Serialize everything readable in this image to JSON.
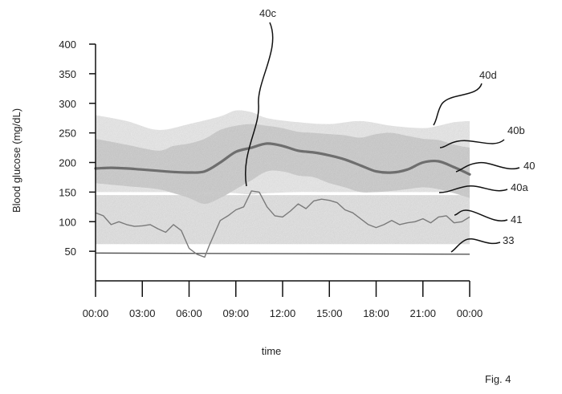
{
  "figure_label": "Fig. 4",
  "chart_data": {
    "type": "area",
    "xlabel": "time",
    "ylabel": "Blood glucose (mg/dL)",
    "x_tick_labels": [
      "00:00",
      "03:00",
      "06:00",
      "09:00",
      "12:00",
      "15:00",
      "18:00",
      "21:00",
      "00:00"
    ],
    "y_ticks": [
      50,
      100,
      150,
      200,
      250,
      300,
      350,
      400
    ],
    "xlim": [
      0,
      24
    ],
    "ylim": [
      0,
      400
    ],
    "grid": false,
    "colors": {
      "outer_band": "#e9e9e9",
      "inner_band": "#cfcfcf",
      "target_band": "#e2e2e2",
      "median": "#6e6e6e",
      "trace": "#7a7a7a",
      "threshold": "#555555"
    },
    "series": [
      {
        "name": "40d",
        "kind": "outer-band",
        "x": [
          0,
          2,
          4,
          6,
          8,
          9,
          10,
          11,
          13,
          15,
          17,
          19,
          21,
          22,
          23,
          24
        ],
        "upper": [
          280,
          270,
          255,
          265,
          278,
          288,
          285,
          275,
          268,
          265,
          270,
          262,
          258,
          262,
          268,
          270
        ],
        "lower": [
          150,
          150,
          150,
          150,
          150,
          148,
          146,
          148,
          150,
          150,
          150,
          150,
          150,
          150,
          150,
          150
        ]
      },
      {
        "name": "40b",
        "kind": "inner-band",
        "x": [
          0,
          2,
          4,
          5,
          6,
          7,
          8,
          9,
          10,
          11,
          12,
          13,
          14,
          15,
          16,
          17,
          18,
          19,
          20,
          21,
          22,
          23,
          24
        ],
        "upper": [
          240,
          230,
          220,
          228,
          232,
          240,
          255,
          262,
          265,
          262,
          258,
          252,
          250,
          248,
          246,
          242,
          248,
          250,
          245,
          240,
          238,
          230,
          225
        ],
        "lower": [
          165,
          160,
          155,
          148,
          140,
          130,
          140,
          155,
          170,
          185,
          185,
          178,
          175,
          165,
          158,
          150,
          150,
          152,
          155,
          158,
          155,
          148,
          140
        ]
      },
      {
        "name": "40a",
        "kind": "target-range",
        "lower": 62,
        "upper": 145
      },
      {
        "name": "40",
        "kind": "median-line",
        "x": [
          0,
          1,
          2,
          3,
          4,
          5,
          6,
          7,
          8,
          9,
          10,
          11,
          12,
          13,
          14,
          15,
          16,
          17,
          18,
          19,
          20,
          21,
          22,
          23,
          24
        ],
        "y": [
          190,
          191,
          190,
          188,
          186,
          184,
          183,
          185,
          200,
          218,
          225,
          232,
          228,
          220,
          217,
          212,
          205,
          195,
          185,
          183,
          188,
          200,
          202,
          192,
          180
        ]
      },
      {
        "name": "41",
        "kind": "glucose-trace",
        "x": [
          0,
          0.5,
          1,
          1.5,
          2,
          2.5,
          3,
          3.5,
          4,
          4.5,
          5,
          5.5,
          6,
          6.5,
          7,
          7.3,
          7.5,
          8,
          8.5,
          9,
          9.5,
          10,
          10.5,
          11,
          11.5,
          12,
          12.5,
          13,
          13.5,
          14,
          14.5,
          15,
          15.5,
          16,
          16.5,
          17,
          17.5,
          18,
          18.5,
          19,
          19.5,
          20,
          20.5,
          21,
          21.5,
          22,
          22.5,
          23,
          23.5,
          24
        ],
        "y": [
          115,
          110,
          95,
          100,
          95,
          92,
          93,
          95,
          88,
          82,
          95,
          85,
          55,
          45,
          40,
          60,
          72,
          102,
          110,
          120,
          125,
          152,
          150,
          125,
          110,
          108,
          118,
          130,
          122,
          135,
          138,
          136,
          132,
          120,
          115,
          105,
          95,
          90,
          95,
          102,
          95,
          98,
          100,
          105,
          98,
          108,
          110,
          98,
          100,
          108
        ]
      },
      {
        "name": "33",
        "kind": "threshold-line",
        "x": [
          0,
          24
        ],
        "y": [
          47,
          45
        ]
      }
    ]
  }
}
